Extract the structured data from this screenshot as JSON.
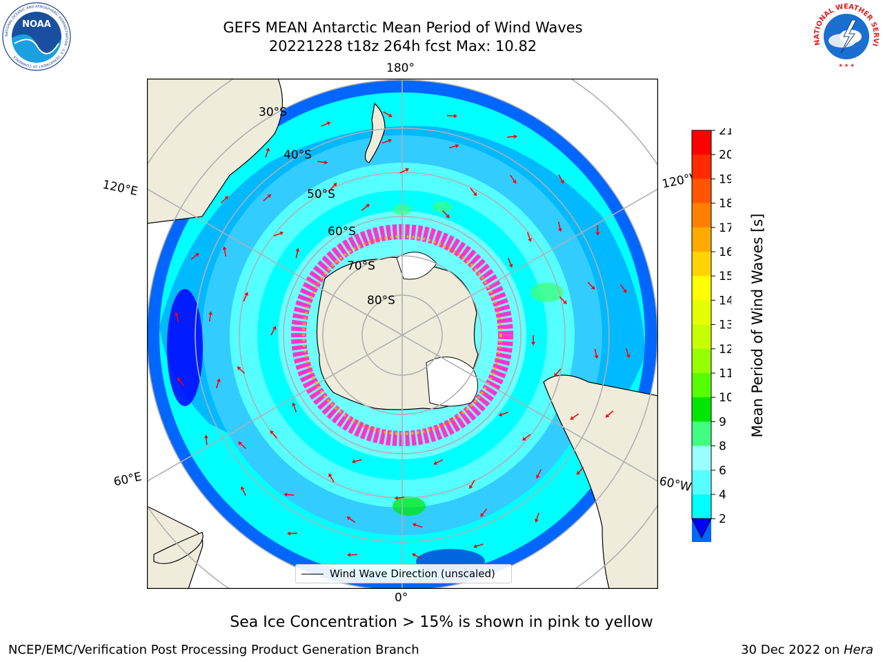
{
  "header": {
    "title_line1": "GEFS MEAN Antarctic Mean Period of Wind Waves",
    "title_line2": "20221228 t18z 264h fcst   Max: 10.82"
  },
  "logos": {
    "left": {
      "name": "noaa-logo",
      "text": "NOAA",
      "ring_text": "NATIONAL OCEANIC AND ATMOSPHERIC ADMINISTRATION · U.S. DEPARTMENT OF COMMERCE"
    },
    "right": {
      "name": "nws-logo",
      "ring_text": "NATIONAL WEATHER SERVICE"
    }
  },
  "map": {
    "projection": "south-polar-stereographic",
    "longitude_labels": {
      "top": "180°",
      "bottom": "0°",
      "upper_left": "120°E",
      "upper_right": "120°W",
      "lower_left": "60°E",
      "lower_right": "60°W"
    },
    "latitude_labels": [
      "30°S",
      "40°S",
      "50°S",
      "60°S",
      "70°S",
      "80°S"
    ],
    "legend": "Wind Wave Direction (unscaled)",
    "colors": {
      "land": "#efecdb",
      "ocean_low": "#0066ff",
      "ocean_mid": "#33ccff",
      "ocean_high": "#00ffff",
      "sea_ice_pink": "#ff33cc",
      "arrow": "#ff0000",
      "grid": "#b0b0b0"
    }
  },
  "colorbar": {
    "title": "Mean Period of Wind Waves [s]",
    "ticks": [
      "21",
      "20",
      "19",
      "18",
      "17",
      "16",
      "15",
      "14",
      "13",
      "12",
      "11",
      "10",
      "9",
      "8",
      "6",
      "4",
      "2"
    ],
    "colors": [
      "#ff0000",
      "#ff2a00",
      "#ff5500",
      "#ff7f00",
      "#ffaa00",
      "#ffd400",
      "#ffff00",
      "#e6ff00",
      "#c8ff00",
      "#96ff00",
      "#55ff00",
      "#00e600",
      "#40ff80",
      "#9cffff",
      "#55ffff",
      "#00ffff",
      "#0066ff"
    ],
    "extend_color": "#0000ff"
  },
  "footnote": "Sea Ice Concentration > 15% is shown in pink to yellow",
  "footer": {
    "left": "NCEP/EMC/Verification Post Processing Product Generation Branch",
    "right_prefix": "30 Dec 2022 on ",
    "right_system": "Hera"
  }
}
